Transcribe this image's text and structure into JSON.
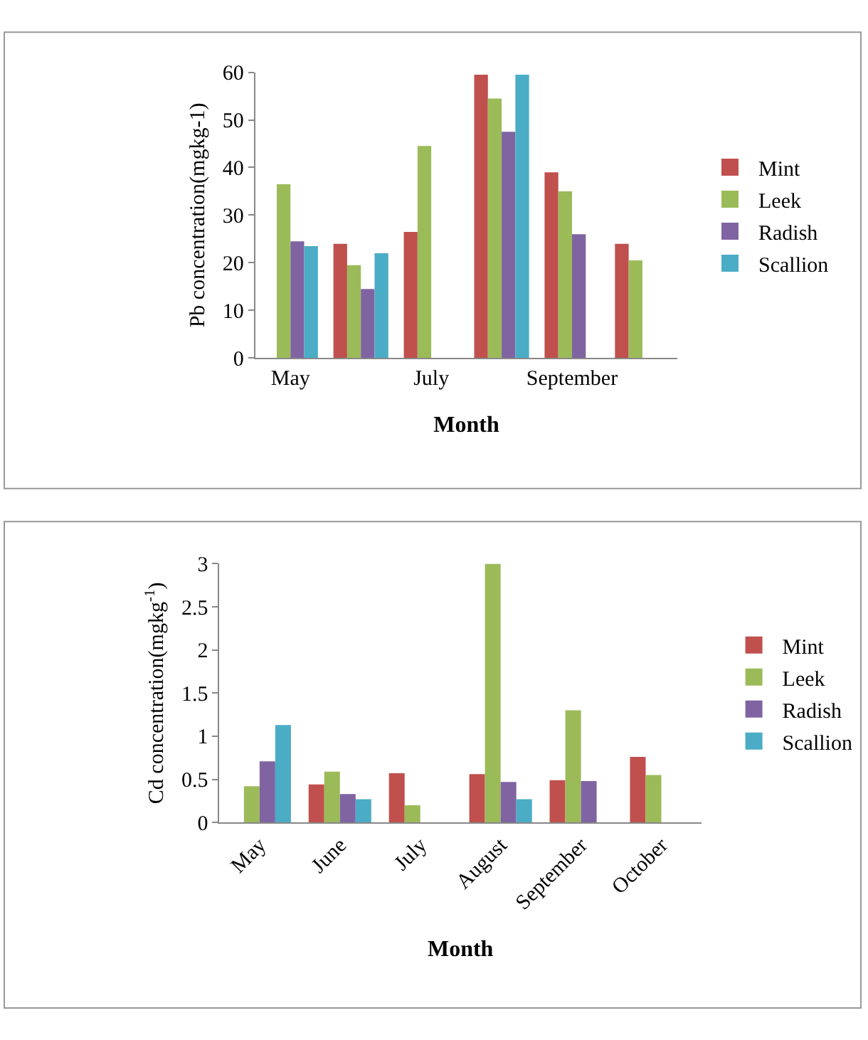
{
  "chart_data": [
    {
      "type": "bar",
      "xlabel": "Month",
      "ylabel": "Pb concentration(mgkg-1)",
      "categories": [
        "May",
        null,
        "July",
        null,
        "September",
        null
      ],
      "ylim": [
        0,
        60
      ],
      "yticks": [
        0,
        10,
        20,
        30,
        40,
        50,
        60
      ],
      "legend": "right",
      "series": [
        {
          "name": "Mint",
          "color": "#c0504d",
          "values": [
            null,
            24,
            26.5,
            59.5,
            39,
            24
          ]
        },
        {
          "name": "Leek",
          "color": "#9bbb59",
          "values": [
            36.5,
            19.5,
            44.5,
            54.5,
            35,
            20.5
          ]
        },
        {
          "name": "Radish",
          "color": "#8064a2",
          "values": [
            24.5,
            14.5,
            null,
            47.5,
            26,
            null
          ]
        },
        {
          "name": "Scallion",
          "color": "#4bacc6",
          "values": [
            23.5,
            22,
            null,
            59.5,
            null,
            null
          ]
        }
      ]
    },
    {
      "type": "bar",
      "xlabel": "Month",
      "ylabel": "Cd concentration(mgkg$^{-1}$)",
      "categories": [
        "May",
        "June",
        "July",
        "August",
        "September",
        "October"
      ],
      "ylim": [
        0,
        3
      ],
      "yticks": [
        0,
        0.5,
        1,
        1.5,
        2,
        2.5,
        3
      ],
      "legend": "right",
      "series": [
        {
          "name": "Mint",
          "color": "#c0504d",
          "values": [
            null,
            0.44,
            0.57,
            0.56,
            0.49,
            0.76
          ]
        },
        {
          "name": "Leek",
          "color": "#9bbb59",
          "values": [
            0.42,
            0.59,
            0.2,
            3.0,
            1.3,
            0.55
          ]
        },
        {
          "name": "Radish",
          "color": "#8064a2",
          "values": [
            0.71,
            0.33,
            null,
            0.47,
            0.48,
            null
          ]
        },
        {
          "name": "Scallion",
          "color": "#4bacc6",
          "values": [
            1.13,
            0.27,
            null,
            0.27,
            null,
            null
          ]
        }
      ]
    }
  ]
}
